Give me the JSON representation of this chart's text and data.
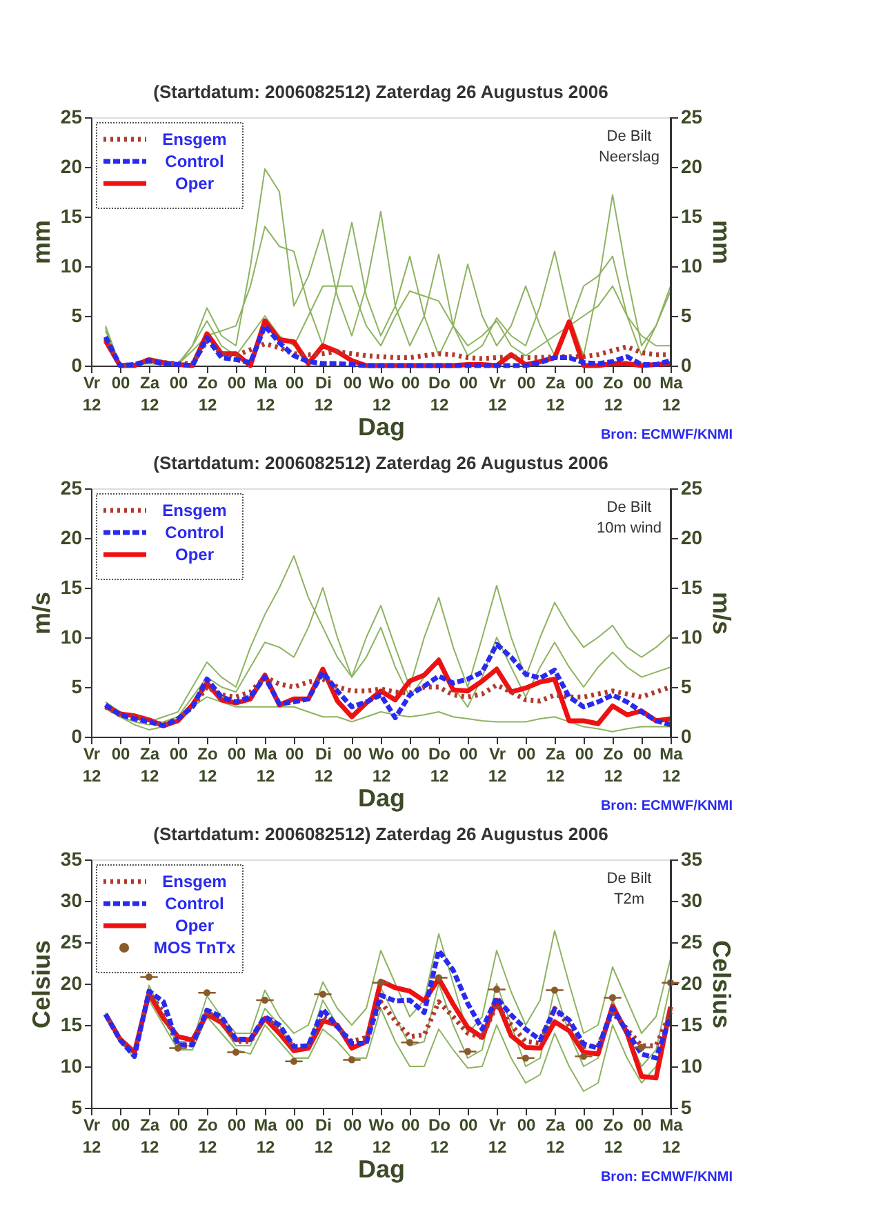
{
  "chart_data": [
    {
      "type": "line",
      "title": "(Startdatum: 2006082512)   Zaterdag 26 Augustus 2006",
      "xlabel": "Dag",
      "ylabel": "mm",
      "y2label": "mm",
      "annotations": [
        "De Bilt",
        "Neerslag",
        "Bron: ECMWF/KNMI"
      ],
      "categories": [
        "Vr\n12",
        null,
        "00",
        null,
        "Za\n12",
        null,
        "00",
        null,
        "Zo\n12",
        null,
        "00",
        null,
        "Ma\n12",
        null,
        "00",
        null,
        "Di\n12",
        null,
        "00",
        null,
        "Wo\n12",
        null,
        "00",
        null,
        "Do\n12",
        null,
        "00",
        null,
        "Vr\n12",
        null,
        "00",
        null,
        "Za\n12",
        null,
        "00",
        null,
        "Zo\n12",
        null,
        "00",
        null,
        "Ma\n12"
      ],
      "ylim": [
        0,
        25
      ],
      "yticks": [
        0,
        5,
        10,
        15,
        20,
        25
      ],
      "y2lim": [
        0,
        25
      ],
      "y2ticks": [
        0,
        5,
        10,
        15,
        20,
        25
      ],
      "legend": "top left",
      "grid": false,
      "marker": "none",
      "series": [
        {
          "color": "#8db360",
          "line_style": "solid",
          "values": [
            null,
            4.0,
            0,
            0.1,
            0.3,
            0.2,
            0.2,
            2,
            5.8,
            3,
            2,
            10,
            19.8,
            17.5,
            6,
            9,
            13.7,
            7,
            3,
            8,
            15.5,
            6,
            2,
            5,
            11.2,
            4,
            1,
            2,
            4.8,
            3,
            2,
            6,
            11.5,
            5,
            1,
            8,
            17.2,
            9,
            2,
            4,
            7.5
          ]
        },
        {
          "color": "#8db360",
          "line_style": "solid",
          "values": [
            null,
            3.5,
            0,
            0.2,
            0.5,
            0.3,
            0.1,
            1.5,
            3,
            3.5,
            4,
            8,
            14,
            12,
            11.5,
            6,
            2,
            8,
            14.4,
            7,
            3,
            6,
            11,
            5,
            1,
            4,
            10.2,
            5,
            2,
            4,
            8,
            4,
            1,
            4,
            8,
            9,
            11,
            5,
            1,
            4,
            8
          ]
        },
        {
          "color": "#8db360",
          "line_style": "solid",
          "values": [
            null,
            3.8,
            0,
            0.1,
            0.2,
            0.1,
            0,
            2,
            4.5,
            2,
            1,
            3,
            5,
            3,
            2,
            5,
            8,
            8,
            8,
            4,
            2,
            5,
            7.5,
            7,
            6.5,
            4,
            2,
            3,
            4.5,
            2,
            1,
            2,
            3,
            4,
            5,
            6,
            8,
            5,
            3,
            2,
            2
          ]
        },
        {
          "name": "Ensgem",
          "color": "#b03a2e",
          "line_style": "dotted",
          "values": [
            null,
            2.7,
            0,
            0.1,
            0.6,
            0.3,
            0.2,
            0.2,
            2.5,
            1.2,
            1.0,
            1.6,
            2.2,
            1.8,
            1.2,
            1.1,
            1.2,
            1.4,
            1.2,
            1.0,
            0.9,
            0.8,
            0.8,
            1.0,
            1.2,
            1.1,
            0.8,
            0.7,
            0.8,
            0.9,
            0.8,
            0.8,
            0.9,
            0.9,
            0.9,
            1.1,
            1.5,
            1.9,
            1.3,
            1.1,
            1.1
          ]
        },
        {
          "name": "Control",
          "color": "#2a2aee",
          "line_style": "dashed",
          "values": [
            null,
            2.9,
            0,
            0.1,
            0.5,
            0.2,
            0.1,
            0,
            2.8,
            0.8,
            0.6,
            0.3,
            4.0,
            2.3,
            1.0,
            0.4,
            0.2,
            0.2,
            0.1,
            0,
            0,
            0,
            0,
            0,
            0,
            0,
            0,
            0,
            0,
            0,
            0,
            0.3,
            0.8,
            0.8,
            0.3,
            0.2,
            0.4,
            0.9,
            0.1,
            0.1,
            0.5
          ]
        },
        {
          "name": "Oper",
          "color": "#ee1111",
          "line_style": "solid",
          "values": [
            null,
            2.5,
            0,
            0,
            0.6,
            0.3,
            0.1,
            0,
            3.2,
            1.2,
            1.2,
            0,
            4.5,
            2.6,
            2.4,
            0.2,
            2.0,
            1.4,
            0.5,
            0,
            0,
            0,
            0,
            0,
            0,
            0,
            0.1,
            0.1,
            0,
            1.1,
            0.1,
            0.4,
            0.8,
            4.4,
            0,
            0,
            0.2,
            0.2,
            0,
            0.1,
            0.2
          ]
        }
      ]
    },
    {
      "type": "line",
      "title": "(Startdatum: 2006082512)   Zaterdag 26 Augustus 2006",
      "xlabel": "Dag",
      "ylabel": "m/s",
      "y2label": "m/s",
      "annotations": [
        "De Bilt",
        "10m wind",
        "Bron: ECMWF/KNMI"
      ],
      "categories": [
        "Vr\n12",
        null,
        "00",
        null,
        "Za\n12",
        null,
        "00",
        null,
        "Zo\n12",
        null,
        "00",
        null,
        "Ma\n12",
        null,
        "00",
        null,
        "Di\n12",
        null,
        "00",
        null,
        "Wo\n12",
        null,
        "00",
        null,
        "Do\n12",
        null,
        "00",
        null,
        "Vr\n12",
        null,
        "00",
        null,
        "Za\n12",
        null,
        "00",
        null,
        "Zo\n12",
        null,
        "00",
        null,
        "Ma\n12"
      ],
      "ylim": [
        0,
        25
      ],
      "yticks": [
        0,
        5,
        10,
        15,
        20,
        25
      ],
      "y2lim": [
        0,
        25
      ],
      "y2ticks": [
        0,
        5,
        10,
        15,
        20,
        25
      ],
      "legend": "top left",
      "grid": false,
      "marker": "none",
      "series": [
        {
          "color": "#8db360",
          "line_style": "solid",
          "values": [
            null,
            3.5,
            2.5,
            2,
            1.5,
            2,
            2.5,
            5,
            7.5,
            6,
            5,
            9,
            12.3,
            15,
            18.2,
            14,
            11,
            8,
            6,
            10,
            13.2,
            9,
            5,
            10,
            14,
            9,
            5,
            10,
            15.2,
            10,
            6,
            10,
            13.5,
            11,
            9,
            10,
            11.2,
            9,
            8,
            9,
            10.3
          ]
        },
        {
          "color": "#8db360",
          "line_style": "solid",
          "values": [
            null,
            3,
            2,
            1.5,
            1.2,
            1.5,
            2,
            4,
            6,
            5,
            4.5,
            7,
            9.5,
            9,
            8,
            11,
            15,
            10,
            6,
            8,
            11,
            7,
            4,
            6,
            8,
            5,
            3,
            6,
            10,
            7,
            4,
            7,
            9.5,
            7,
            5,
            7,
            8.5,
            7,
            6,
            6.5,
            7
          ]
        },
        {
          "color": "#8db360",
          "line_style": "solid",
          "values": [
            null,
            2.8,
            2,
            1.2,
            0.7,
            1,
            1.5,
            3,
            4,
            3.5,
            3,
            3,
            3,
            3,
            3,
            2.5,
            2,
            2,
            1.5,
            2,
            2.5,
            2.2,
            2,
            2.2,
            2.5,
            2,
            1.8,
            1.6,
            1.5,
            1.5,
            1.5,
            1.8,
            2,
            1.5,
            1,
            0.8,
            0.5,
            0.8,
            1,
            1,
            1
          ]
        },
        {
          "name": "Ensgem",
          "color": "#b03a2e",
          "line_style": "dotted",
          "values": [
            null,
            3.0,
            2.2,
            2.0,
            1.6,
            1.2,
            1.8,
            3.0,
            5.0,
            4.2,
            4.0,
            4.5,
            6.0,
            5.3,
            5.0,
            5.5,
            5.8,
            5.0,
            4.6,
            4.6,
            4.8,
            4.5,
            4.4,
            5.0,
            5.0,
            4.2,
            4.0,
            4.3,
            5.2,
            4.5,
            3.7,
            3.6,
            4.2,
            4.0,
            4.0,
            4.3,
            4.6,
            4.3,
            4.0,
            4.5,
            5.0
          ]
        },
        {
          "name": "Control",
          "color": "#2a2aee",
          "line_style": "dashed",
          "values": [
            null,
            3.2,
            2.2,
            1.8,
            1.5,
            1.1,
            1.8,
            3.0,
            5.8,
            4.0,
            3.5,
            4.0,
            6.0,
            3.3,
            3.5,
            3.8,
            6.5,
            4.6,
            3.0,
            3.5,
            4.2,
            1.9,
            4.2,
            5.1,
            6.1,
            5.4,
            5.8,
            6.5,
            9.3,
            8.0,
            6.3,
            5.9,
            6.7,
            4.0,
            3.0,
            3.5,
            4.2,
            3.5,
            2.5,
            1.6,
            1.2
          ]
        },
        {
          "name": "Oper",
          "color": "#ee1111",
          "line_style": "solid",
          "values": [
            null,
            3.1,
            2.3,
            2.1,
            1.7,
            1.1,
            1.6,
            3.2,
            5.4,
            3.7,
            3.4,
            3.8,
            6.2,
            3.2,
            3.8,
            3.8,
            6.8,
            3.6,
            2.0,
            3.4,
            4.6,
            3.7,
            5.6,
            6.2,
            7.7,
            4.7,
            4.6,
            5.6,
            6.8,
            4.5,
            4.9,
            5.5,
            5.8,
            1.6,
            1.6,
            1.3,
            3.1,
            2.2,
            2.6,
            1.6,
            1.8
          ]
        }
      ]
    },
    {
      "type": "line",
      "title": "(Startdatum: 2006082512)   Zaterdag 26 Augustus 2006",
      "xlabel": "Dag",
      "ylabel": "Celsius",
      "y2label": "Celsius",
      "annotations": [
        "De Bilt",
        "T2m",
        "Bron: ECMWF/KNMI"
      ],
      "categories": [
        "Vr\n12",
        null,
        "00",
        null,
        "Za\n12",
        null,
        "00",
        null,
        "Zo\n12",
        null,
        "00",
        null,
        "Ma\n12",
        null,
        "00",
        null,
        "Di\n12",
        null,
        "00",
        null,
        "Wo\n12",
        null,
        "00",
        null,
        "Do\n12",
        null,
        "00",
        null,
        "Vr\n12",
        null,
        "00",
        null,
        "Za\n12",
        null,
        "00",
        null,
        "Zo\n12",
        null,
        "00",
        null,
        "Ma\n12"
      ],
      "ylim": [
        5,
        35
      ],
      "yticks": [
        5,
        10,
        15,
        20,
        25,
        30,
        35
      ],
      "y2lim": [
        5,
        35
      ],
      "y2ticks": [
        5,
        10,
        15,
        20,
        25,
        30,
        35
      ],
      "legend": "top left",
      "grid": false,
      "marker": "none",
      "series": [
        {
          "color": "#8db360",
          "line_style": "solid",
          "values": [
            null,
            16.5,
            13.5,
            11.5,
            19.8,
            16,
            13,
            13,
            18.5,
            16,
            14,
            14,
            19.2,
            16,
            14,
            15,
            20.2,
            17,
            15,
            17,
            24,
            20,
            16,
            18,
            26,
            20,
            14,
            16,
            24,
            19,
            15,
            18,
            26.4,
            20,
            14,
            15,
            22,
            18,
            14,
            16,
            23
          ]
        },
        {
          "color": "#8db360",
          "line_style": "solid",
          "values": [
            null,
            16,
            13,
            11,
            18,
            15,
            12,
            12,
            16,
            14,
            12,
            11.5,
            15,
            13,
            11,
            11,
            14.5,
            13,
            11,
            11,
            17,
            13,
            10,
            10,
            14.5,
            12,
            9.8,
            10,
            15,
            11,
            8,
            9,
            14,
            10,
            7,
            8,
            15,
            11,
            8,
            10,
            17
          ]
        },
        {
          "color": "#8db360",
          "line_style": "solid",
          "values": [
            null,
            16.3,
            13.2,
            11.6,
            19,
            16,
            12.5,
            12.5,
            17,
            15,
            12.5,
            12.5,
            17,
            15,
            12,
            12.5,
            18,
            15,
            12,
            13,
            19.5,
            16,
            12.5,
            13,
            20,
            15,
            11,
            12,
            20,
            15,
            10,
            11,
            19.5,
            14,
            10,
            11,
            18,
            14,
            10,
            12,
            20
          ]
        },
        {
          "name": "Ensgem",
          "color": "#b03a2e",
          "line_style": "dotted",
          "values": [
            null,
            16.3,
            13.3,
            11.5,
            18.9,
            16.5,
            12.5,
            12.6,
            16.6,
            15.5,
            13.0,
            13.0,
            16.0,
            14.5,
            12.3,
            12.5,
            16.0,
            14.8,
            13.0,
            13.5,
            17.8,
            15.5,
            13.6,
            13.8,
            17.8,
            16.0,
            14.0,
            13.5,
            17.5,
            15.0,
            13.0,
            12.8,
            17.0,
            15.0,
            12.4,
            12.5,
            16.5,
            14.5,
            12.5,
            12.5,
            16.5
          ]
        },
        {
          "name": "Control",
          "color": "#2a2aee",
          "line_style": "dashed",
          "values": [
            null,
            16.3,
            13.2,
            11.2,
            19.1,
            17.8,
            12.6,
            12.6,
            16.8,
            16.0,
            13.3,
            13.3,
            16.0,
            15.0,
            12.4,
            12.5,
            16.9,
            14.8,
            12.8,
            12.8,
            18.6,
            17.9,
            18.0,
            16.5,
            24.0,
            21.6,
            17.6,
            14.5,
            18.3,
            16.2,
            14.5,
            13.2,
            16.9,
            15.6,
            12.7,
            12.2,
            17.0,
            14.2,
            11.5,
            11.0,
            16.0
          ]
        },
        {
          "name": "Oper",
          "color": "#ee1111",
          "line_style": "solid",
          "values": [
            null,
            16.3,
            13.3,
            11.7,
            18.8,
            15.8,
            13.6,
            13.2,
            16.3,
            15.3,
            13.2,
            13.2,
            15.8,
            14.0,
            11.9,
            12.2,
            15.5,
            15.0,
            12.2,
            13.0,
            20.3,
            19.5,
            19.1,
            17.9,
            20.6,
            17.5,
            14.7,
            13.5,
            18.0,
            13.7,
            12.3,
            12.2,
            15.4,
            14.3,
            11.7,
            11.5,
            17.3,
            14.0,
            8.8,
            8.6,
            17.2
          ]
        },
        {
          "name": "MOS TnTx",
          "type": "scatter",
          "color": "#8b5a2b",
          "marker": "circle",
          "values": [
            null,
            null,
            null,
            null,
            20.8,
            null,
            12.2,
            null,
            18.9,
            null,
            11.7,
            null,
            18.0,
            null,
            10.6,
            null,
            18.7,
            null,
            10.8,
            null,
            20.1,
            null,
            12.9,
            null,
            20.7,
            null,
            11.8,
            null,
            19.3,
            null,
            11.0,
            null,
            19.2,
            null,
            11.2,
            null,
            18.3,
            null,
            12.3,
            null,
            20.1
          ]
        }
      ]
    }
  ]
}
